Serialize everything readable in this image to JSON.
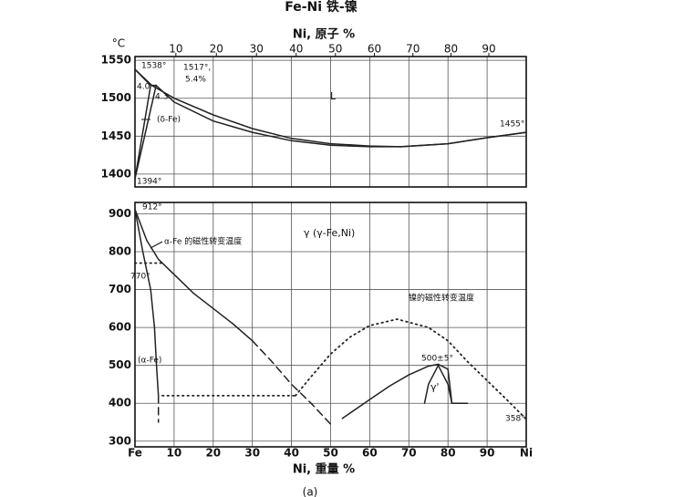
{
  "chart_data": [
    {
      "type": "line",
      "title": "Fe-Ni 铁-镍",
      "ylabel": "°C",
      "x2label": "Ni, 原子 %",
      "xlim": [
        0,
        100
      ],
      "ylim": [
        1383,
        1555
      ],
      "xticks": [
        0,
        10,
        20,
        30,
        40,
        50,
        60,
        70,
        80,
        90,
        100
      ],
      "x2lim": [
        0,
        100
      ],
      "x2ticks": [
        10,
        20,
        30,
        40,
        50,
        60,
        70,
        80,
        90
      ],
      "yticks": [
        1400,
        1450,
        1500,
        1550
      ],
      "grid": true,
      "series": [
        {
          "color": "#222",
          "style": "solid",
          "x": [
            0,
            4.3,
            10,
            20,
            30,
            40,
            50,
            60,
            68,
            80,
            90,
            100
          ],
          "values": [
            1538,
            1517,
            1500,
            1478,
            1460,
            1447,
            1440,
            1437,
            1436,
            1440,
            1448,
            1455
          ]
        },
        {
          "color": "#222",
          "style": "solid",
          "x": [
            0,
            4.0,
            5.4,
            10,
            20,
            30,
            40,
            50,
            60,
            68,
            80,
            90,
            100
          ],
          "values": [
            1538,
            1517,
            1517,
            1495,
            1470,
            1455,
            1444,
            1438,
            1436,
            1436,
            1440,
            1448,
            1455
          ]
        },
        {
          "color": "#222",
          "style": "solid",
          "x": [
            0,
            4.0
          ],
          "values": [
            1394,
            1517
          ]
        },
        {
          "color": "#222",
          "style": "solid",
          "x": [
            0,
            5.4
          ],
          "values": [
            1394,
            1517
          ]
        }
      ],
      "annotations": [
        "1538°",
        "1517°,",
        "5.4%",
        "4.0",
        "4.3",
        "(δ-Fe)",
        "L",
        "1455°",
        "1394°"
      ]
    },
    {
      "type": "line",
      "x2label": "Ni, 重量 %",
      "caption": "(a)",
      "xlim": [
        0,
        100
      ],
      "ylim": [
        285,
        930
      ],
      "xticks": [
        {
          "value": 0,
          "label": "Fe"
        },
        10,
        20,
        30,
        40,
        50,
        60,
        70,
        80,
        90,
        {
          "value": 100,
          "label": "Ni"
        }
      ],
      "yticks": [
        300,
        400,
        500,
        600,
        700,
        800,
        900
      ],
      "grid": true,
      "series": [
        {
          "color": "#222",
          "style": "solid",
          "x": [
            0,
            3,
            6,
            10,
            15,
            20,
            25,
            30
          ],
          "values": [
            912,
            830,
            780,
            740,
            690,
            650,
            610,
            565
          ]
        },
        {
          "color": "#222",
          "style": "dashed",
          "x": [
            30,
            35,
            40,
            45,
            50
          ],
          "values": [
            565,
            510,
            450,
            400,
            345
          ]
        },
        {
          "color": "#222",
          "style": "solid",
          "x": [
            0,
            2,
            4,
            5,
            5.5,
            6
          ],
          "values": [
            912,
            800,
            700,
            600,
            500,
            420
          ]
        },
        {
          "color": "#222",
          "style": "dashed",
          "x": [
            6,
            6
          ],
          "values": [
            420,
            350
          ]
        },
        {
          "color": "#222",
          "style": "dotted",
          "x": [
            0,
            7.5
          ],
          "values": [
            770,
            770
          ]
        },
        {
          "color": "#222",
          "style": "dotted",
          "x": [
            7,
            41
          ],
          "values": [
            420,
            420
          ]
        },
        {
          "color": "#222",
          "style": "dotted",
          "x": [
            41,
            45,
            50,
            55,
            60,
            67,
            75,
            80,
            85,
            90,
            95,
            100
          ],
          "values": [
            420,
            470,
            530,
            575,
            605,
            622,
            600,
            565,
            510,
            460,
            410,
            358
          ]
        },
        {
          "color": "#222",
          "style": "solid",
          "x": [
            53,
            60,
            65,
            70,
            75,
            77.5,
            80,
            81,
            85
          ],
          "values": [
            360,
            410,
            445,
            475,
            498,
            503,
            490,
            400,
            400
          ]
        },
        {
          "color": "#222",
          "style": "solid",
          "x": [
            74,
            75,
            77.5,
            80,
            81
          ],
          "values": [
            400,
            450,
            500,
            450,
            400
          ]
        }
      ],
      "annotations": [
        "912°",
        "γ (γ-Fe,Ni)",
        "α-Fe 的磁性转变温度",
        "770°",
        "(α-Fe)",
        "镍的磁性转变温度",
        "500±5°",
        "γ'",
        "358°"
      ]
    }
  ]
}
